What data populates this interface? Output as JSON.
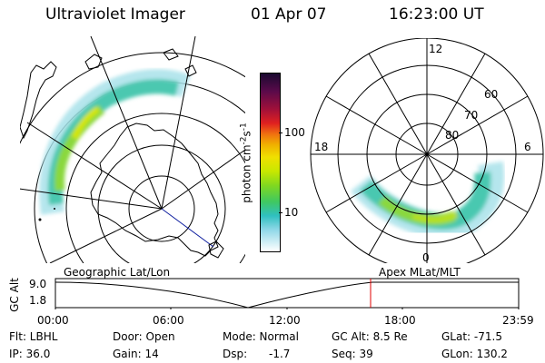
{
  "header": {
    "instrument": "Ultraviolet Imager",
    "date": "01 Apr 07",
    "time": "16:23:00 UT"
  },
  "colorbar": {
    "label": "photon cm",
    "label_sup1": "-2",
    "label_mid": "s",
    "label_sup2": "-1",
    "ticks": [
      "100",
      "10"
    ],
    "scale": "log",
    "colors": [
      "#1a0a30",
      "#5a0a4a",
      "#a0103a",
      "#e02020",
      "#f07010",
      "#f0b000",
      "#f0e000",
      "#c8e800",
      "#80d820",
      "#40c860",
      "#30c0c0",
      "#90d8e8",
      "#ffffff"
    ]
  },
  "left_map": {
    "label": "Geographic Lat/Lon"
  },
  "right_map": {
    "label": "Apex  MLat/MLT",
    "mlt_labels": [
      "12",
      "18",
      "6",
      "0"
    ],
    "lat_labels": [
      "60",
      "70",
      "80"
    ]
  },
  "altitude_plot": {
    "ylabel": "GC Alt",
    "yticks": [
      "9.0",
      "1.8"
    ],
    "xticks": [
      "00:00",
      "06:00",
      "12:00",
      "18:00",
      "23:59"
    ],
    "marker_color": "#e00000"
  },
  "info": {
    "flt": "Flt: LBHL",
    "ip": "IP: 36.0",
    "door": "Door: Open",
    "gain": "Gain: 14",
    "mode": "Mode: Normal",
    "dsp_label": "Dsp:",
    "dsp_value": "-1.7",
    "gcalt": "GC Alt: 8.5 Re",
    "seq": "Seq: 39",
    "glat": "GLat: -71.5",
    "glon": "GLon: 130.2"
  }
}
